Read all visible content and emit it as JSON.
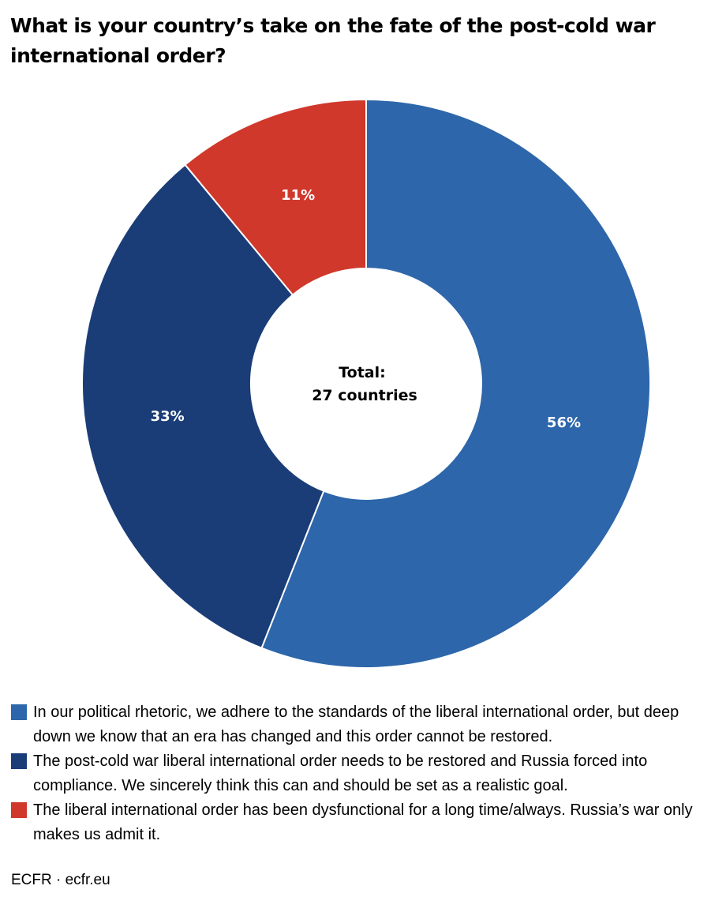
{
  "title": "What is your country’s take on the fate of the post-cold war international order?",
  "source": "ECFR · ecfr.eu",
  "center_label": {
    "line1": "Total:",
    "line2": "27 countries"
  },
  "chart_data": {
    "type": "pie",
    "donut": true,
    "title": "What is your country’s take on the fate of the post-cold war international order?",
    "slices": [
      {
        "label": "In our political rhetoric, we adhere to the standards of the liberal international order, but deep down we know that an era has changed and this order cannot be restored.",
        "value": 56,
        "display": "56%",
        "color": "#2d66aa"
      },
      {
        "label": "The post-cold war liberal international order needs to be restored and Russia forced into compliance. We sincerely think this can and should be set as a realistic goal.",
        "value": 33,
        "display": "33%",
        "color": "#1a3d78"
      },
      {
        "label": "The liberal international order has been dysfunctional for a long time/always. Russia’s war only makes us admit it.",
        "value": 11,
        "display": "11%",
        "color": "#d0382b"
      }
    ],
    "legend_position": "bottom"
  }
}
